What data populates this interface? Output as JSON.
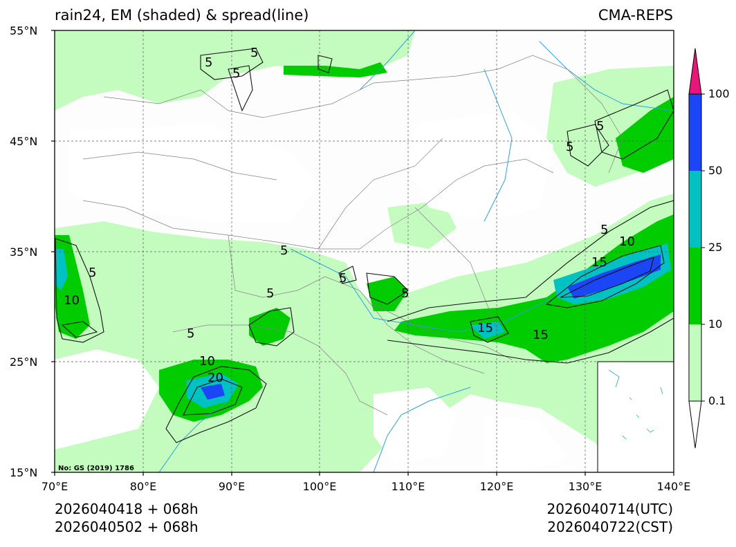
{
  "title_left": "rain24, EM (shaded) & spread(line)",
  "title_right": "CMA-REPS",
  "map": {
    "lon_range": [
      70,
      140
    ],
    "lat_range": [
      15,
      55
    ],
    "lat_labels": [
      "55°N",
      "45°N",
      "35°N",
      "25°N",
      "15°N"
    ],
    "lon_labels": [
      "70°E",
      "80°E",
      "90°E",
      "100°E",
      "110°E",
      "120°E",
      "130°E",
      "140°E"
    ],
    "gridlines": true,
    "approval_number": "No: GS (2019) 1786",
    "contour_labels": [
      "5",
      "10",
      "15",
      "20"
    ]
  },
  "colorbar": {
    "levels": [
      "0.1",
      "10",
      "25",
      "50",
      "100"
    ],
    "colors": {
      "below": "#ffffff",
      "l1": "#c4fcc0",
      "l2": "#00cc00",
      "l3": "#00c2c2",
      "l4": "#1a46f5",
      "above": "#e8157a"
    }
  },
  "footer": {
    "init_utc": "2026040418  +  068h",
    "init_cst": "2026040502  +  068h",
    "valid_utc": "2026040714(UTC)",
    "valid_cst": "2026040722(CST)"
  }
}
